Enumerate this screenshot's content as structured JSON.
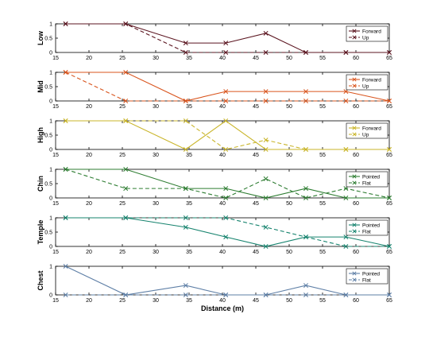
{
  "chart_data": [
    {
      "type": "line",
      "ylabel": "Low",
      "xlim": [
        15,
        65
      ],
      "ylim": [
        0,
        1
      ],
      "x": [
        16.5,
        25.5,
        34.5,
        40.5,
        46.5,
        52.5,
        58.5,
        65
      ],
      "xticks": [
        15,
        20,
        25,
        30,
        35,
        40,
        45,
        50,
        55,
        60,
        65
      ],
      "yticks": [
        0,
        0.5,
        1
      ],
      "legend_position": "right",
      "series": [
        {
          "name": "Forward",
          "color": "#5b1520",
          "style": "solid",
          "values": [
            1,
            1,
            0.33,
            0.33,
            0.67,
            0,
            0,
            0
          ]
        },
        {
          "name": "Up",
          "color": "#5b1520",
          "style": "dashed",
          "values": [
            1,
            1,
            0,
            0,
            0,
            0,
            0,
            0
          ]
        }
      ]
    },
    {
      "type": "line",
      "ylabel": "Mid",
      "xlim": [
        15,
        65
      ],
      "ylim": [
        0,
        1
      ],
      "x": [
        16.5,
        25.5,
        34.5,
        40.5,
        46.5,
        52.5,
        58.5,
        65
      ],
      "xticks": [
        15,
        20,
        25,
        30,
        35,
        40,
        45,
        50,
        55,
        60,
        65
      ],
      "yticks": [
        0,
        0.5,
        1
      ],
      "legend_position": "right",
      "series": [
        {
          "name": "Forward",
          "color": "#d9551e",
          "style": "solid",
          "values": [
            1,
            1,
            0,
            0.33,
            0.33,
            0.33,
            0.33,
            0
          ]
        },
        {
          "name": "Up",
          "color": "#d9551e",
          "style": "dashed",
          "values": [
            1,
            0,
            0,
            0,
            0,
            0,
            0,
            0
          ]
        }
      ]
    },
    {
      "type": "line",
      "ylabel": "High",
      "xlim": [
        15,
        65
      ],
      "ylim": [
        0,
        1
      ],
      "x": [
        16.5,
        25.5,
        34.5,
        40.5,
        46.5,
        52.5,
        58.5,
        65
      ],
      "xticks": [
        15,
        20,
        25,
        30,
        35,
        40,
        45,
        50,
        55,
        60,
        65
      ],
      "yticks": [
        0,
        0.5,
        1
      ],
      "legend_position": "right",
      "series": [
        {
          "name": "Forward",
          "color": "#c9b52a",
          "style": "solid",
          "values": [
            1,
            1,
            0,
            1,
            0,
            0,
            0,
            0
          ]
        },
        {
          "name": "Up",
          "color": "#c9b52a",
          "style": "dashed",
          "values": [
            1,
            1,
            1,
            0,
            0.33,
            0,
            0,
            0
          ]
        }
      ]
    },
    {
      "type": "line",
      "ylabel": "Chin",
      "xlim": [
        15,
        65
      ],
      "ylim": [
        0,
        1
      ],
      "x": [
        16.5,
        25.5,
        34.5,
        40.5,
        46.5,
        52.5,
        58.5,
        65
      ],
      "xticks": [
        15,
        20,
        25,
        30,
        35,
        40,
        45,
        50,
        55,
        60,
        65
      ],
      "yticks": [
        0,
        0.5,
        1
      ],
      "legend_position": "right",
      "series": [
        {
          "name": "Pointed",
          "color": "#2e7d32",
          "style": "solid",
          "values": [
            1,
            1,
            0.33,
            0.33,
            0,
            0.33,
            0,
            0
          ]
        },
        {
          "name": "Flat",
          "color": "#2e7d32",
          "style": "dashed",
          "values": [
            1,
            0.33,
            0.33,
            0,
            0.67,
            0,
            0.33,
            0
          ]
        }
      ]
    },
    {
      "type": "line",
      "ylabel": "Temple",
      "xlim": [
        15,
        65
      ],
      "ylim": [
        0,
        1
      ],
      "x": [
        16.5,
        25.5,
        34.5,
        40.5,
        46.5,
        52.5,
        58.5,
        65
      ],
      "xticks": [
        15,
        20,
        25,
        30,
        35,
        40,
        45,
        50,
        55,
        60,
        65
      ],
      "yticks": [
        0,
        0.5,
        1
      ],
      "legend_position": "right",
      "series": [
        {
          "name": "Pointed",
          "color": "#16836e",
          "style": "solid",
          "values": [
            1,
            1,
            0.67,
            0.33,
            0,
            0.33,
            0.33,
            0
          ]
        },
        {
          "name": "Flat",
          "color": "#16836e",
          "style": "dashed",
          "values": [
            1,
            1,
            1,
            1,
            0.67,
            0.33,
            0,
            0
          ]
        }
      ]
    },
    {
      "type": "line",
      "ylabel": "Chest",
      "xlabel": "Distance (m)",
      "xlim": [
        15,
        65
      ],
      "ylim": [
        0,
        1
      ],
      "x": [
        16.5,
        25.5,
        34.5,
        40.5,
        46.5,
        52.5,
        58.5,
        65
      ],
      "xticks": [
        15,
        20,
        25,
        30,
        35,
        40,
        45,
        50,
        55,
        60,
        65
      ],
      "yticks": [
        0,
        1
      ],
      "legend_position": "right",
      "series": [
        {
          "name": "Pointed",
          "color": "#5e7fa6",
          "style": "solid",
          "values": [
            1,
            0,
            0.33,
            0,
            0,
            0.33,
            0,
            0
          ]
        },
        {
          "name": "Flat",
          "color": "#5e7fa6",
          "style": "dashed",
          "values": [
            0,
            0,
            0,
            0,
            0,
            0,
            0,
            0
          ]
        }
      ]
    }
  ]
}
